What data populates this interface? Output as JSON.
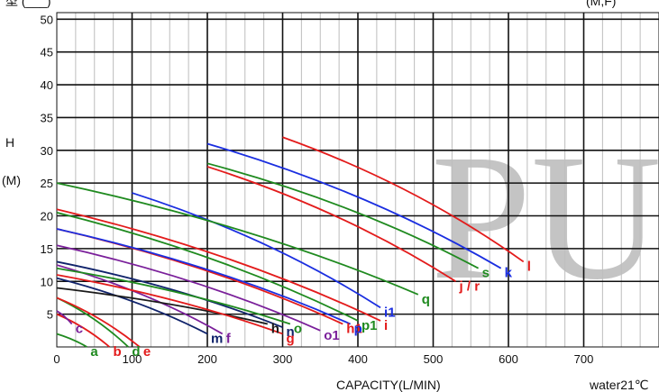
{
  "header": {
    "left": "型 (___)",
    "right": "(M,F)"
  },
  "colors": {
    "red": "#e31b1b",
    "blue": "#1a2ee0",
    "green": "#1f8a1f",
    "purple": "#7a1f9a",
    "navy": "#10236b",
    "olive": "#6b6b10",
    "gray": "#1a1a1a",
    "lightgray": "#bdbdbd"
  },
  "chart_data": {
    "type": "line",
    "title": "",
    "xlabel": "CAPACITY(L/MIN)",
    "ylabel_top": "H",
    "ylabel_bottom": "(M)",
    "note": "water21℃",
    "watermark": "PU",
    "xlim": [
      0,
      800
    ],
    "ylim": [
      0,
      51
    ],
    "xticks": [
      0,
      100,
      200,
      300,
      400,
      500,
      600,
      700
    ],
    "yticks": [
      5,
      10,
      15,
      20,
      25,
      30,
      35,
      40,
      45,
      50
    ],
    "grid": true,
    "series": [
      {
        "name": "a",
        "color": "green",
        "x": [
          0,
          40
        ],
        "y": [
          2,
          0
        ]
      },
      {
        "name": "b",
        "color": "red",
        "x": [
          0,
          70
        ],
        "y": [
          5,
          0
        ]
      },
      {
        "name": "c",
        "color": "purple",
        "x": [
          0,
          20
        ],
        "y": [
          5.5,
          3.5
        ]
      },
      {
        "name": "d",
        "color": "green",
        "x": [
          0,
          95
        ],
        "y": [
          7.5,
          0
        ]
      },
      {
        "name": "e",
        "color": "red",
        "x": [
          0,
          110
        ],
        "y": [
          7.5,
          0
        ]
      },
      {
        "name": "m",
        "color": "navy",
        "x": [
          0,
          200
        ],
        "y": [
          10.5,
          2
        ]
      },
      {
        "name": "f",
        "color": "purple",
        "x": [
          0,
          220
        ],
        "y": [
          12.5,
          2
        ]
      },
      {
        "name": "h",
        "color": "gray",
        "x": [
          0,
          280
        ],
        "y": [
          9,
          3.5
        ]
      },
      {
        "name": "n",
        "color": "navy",
        "x": [
          0,
          300
        ],
        "y": [
          13,
          3
        ]
      },
      {
        "name": "g",
        "color": "red",
        "x": [
          0,
          300
        ],
        "y": [
          11,
          2
        ]
      },
      {
        "name": "o",
        "color": "green",
        "x": [
          0,
          310
        ],
        "y": [
          12,
          3.5
        ]
      },
      {
        "name": "o1",
        "color": "purple",
        "x": [
          0,
          350
        ],
        "y": [
          15.5,
          2.5
        ]
      },
      {
        "name": "h1",
        "color": "red",
        "x": [
          0,
          380
        ],
        "y": [
          18,
          3.5
        ]
      },
      {
        "name": "p",
        "color": "blue",
        "x": [
          0,
          390
        ],
        "y": [
          18,
          3.5
        ]
      },
      {
        "name": "p1",
        "color": "green",
        "x": [
          0,
          400
        ],
        "y": [
          20.5,
          4
        ]
      },
      {
        "name": "i",
        "color": "red",
        "x": [
          0,
          430
        ],
        "y": [
          21,
          4
        ]
      },
      {
        "name": "i1",
        "color": "blue",
        "x": [
          100,
          430
        ],
        "y": [
          23.5,
          6
        ]
      },
      {
        "name": "q",
        "color": "green",
        "x": [
          0,
          480
        ],
        "y": [
          25,
          8
        ]
      },
      {
        "name": "j / r",
        "color": "red",
        "x": [
          200,
          530
        ],
        "y": [
          27.5,
          10
        ]
      },
      {
        "name": "s",
        "color": "green",
        "x": [
          200,
          560
        ],
        "y": [
          28,
          12
        ]
      },
      {
        "name": "k",
        "color": "blue",
        "x": [
          200,
          590
        ],
        "y": [
          31,
          12
        ]
      },
      {
        "name": "l",
        "color": "red",
        "x": [
          300,
          620
        ],
        "y": [
          32,
          13
        ]
      }
    ]
  }
}
